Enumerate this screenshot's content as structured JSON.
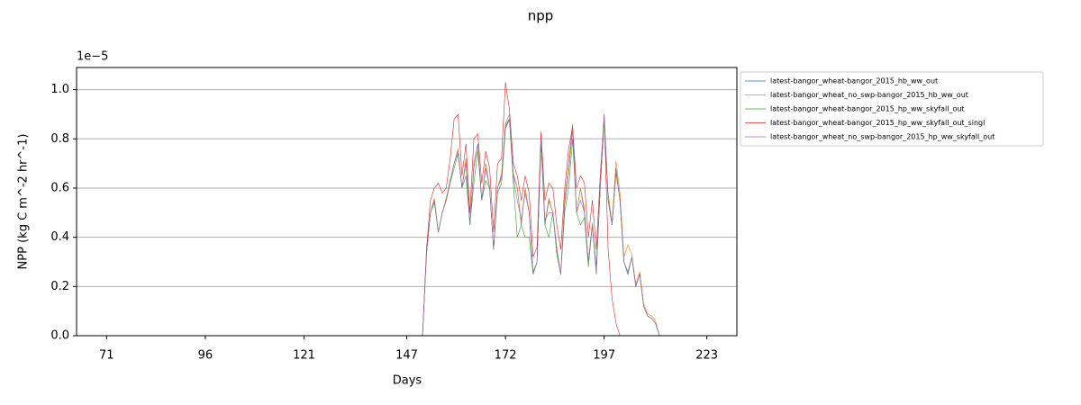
{
  "chart_data": {
    "type": "line",
    "title": "npp",
    "x_label": "Days",
    "y_label": "NPP (kg C m^-2 hr^-1)",
    "y_offset_label": "1e−5",
    "x": [
      151,
      152,
      153,
      154,
      155,
      156,
      157,
      158,
      159,
      160,
      161,
      162,
      163,
      164,
      165,
      166,
      167,
      168,
      169,
      170,
      171,
      172,
      173,
      174,
      175,
      176,
      177,
      178,
      179,
      180,
      181,
      182,
      183,
      184,
      185,
      186,
      187,
      188,
      189,
      190,
      191,
      192,
      193,
      194,
      195,
      196,
      197,
      198,
      199,
      200,
      201,
      202,
      203,
      204,
      205,
      206,
      207,
      208,
      209,
      210,
      211
    ],
    "series": [
      {
        "name": "latest-bangor_wheat-bangor_2015_hb_ww_out",
        "color": "#1f77b4",
        "values": [
          0,
          0.33,
          0.5,
          0.55,
          0.42,
          0.5,
          0.55,
          0.63,
          0.7,
          0.75,
          0.6,
          0.72,
          0.45,
          0.7,
          0.78,
          0.55,
          0.7,
          0.6,
          0.35,
          0.6,
          0.65,
          0.85,
          0.88,
          0.65,
          0.6,
          0.45,
          0.6,
          0.5,
          0.25,
          0.3,
          0.8,
          0.45,
          0.55,
          0.5,
          0.35,
          0.25,
          0.55,
          0.7,
          0.85,
          0.5,
          0.6,
          0.5,
          0.3,
          0.45,
          0.25,
          0.6,
          0.88,
          0.55,
          0.45,
          0.68,
          0.55,
          0.3,
          0.25,
          0.32,
          0.2,
          0.25,
          0.12,
          0.08,
          0.07,
          0.05,
          0
        ]
      },
      {
        "name": "latest-bangor_wheat_no_swp-bangor_2015_hb_ww_out",
        "color": "#ff7f0e",
        "values": [
          0,
          0.33,
          0.5,
          0.56,
          0.42,
          0.5,
          0.56,
          0.63,
          0.7,
          0.76,
          0.6,
          0.72,
          0.45,
          0.7,
          0.78,
          0.55,
          0.7,
          0.6,
          0.35,
          0.6,
          0.66,
          0.86,
          0.88,
          0.66,
          0.6,
          0.46,
          0.6,
          0.5,
          0.26,
          0.3,
          0.8,
          0.46,
          0.56,
          0.5,
          0.36,
          0.25,
          0.56,
          0.7,
          0.86,
          0.5,
          0.6,
          0.52,
          0.3,
          0.46,
          0.26,
          0.6,
          0.88,
          0.58,
          0.46,
          0.71,
          0.58,
          0.32,
          0.37,
          0.33,
          0.21,
          0.26,
          0.13,
          0.09,
          0.08,
          0.06,
          0
        ]
      },
      {
        "name": "latest-bangor_wheat-bangor_2015_hp_ww_skyfall_out",
        "color": "#2ca02c",
        "values": [
          0,
          0.33,
          0.5,
          0.54,
          0.42,
          0.5,
          0.55,
          0.62,
          0.68,
          0.74,
          0.6,
          0.65,
          0.45,
          0.62,
          0.75,
          0.55,
          0.63,
          0.6,
          0.35,
          0.58,
          0.62,
          0.84,
          0.88,
          0.62,
          0.4,
          0.45,
          0.4,
          0.4,
          0.25,
          0.3,
          0.78,
          0.45,
          0.4,
          0.5,
          0.33,
          0.25,
          0.5,
          0.6,
          0.8,
          0.5,
          0.45,
          0.48,
          0.28,
          0.45,
          0.28,
          0.6,
          0.88,
          0.55,
          0.45,
          0.66,
          0.55,
          0.3,
          0.25,
          0.32,
          0.2,
          0.25,
          0.12,
          0.08,
          0.07,
          0.05,
          0
        ]
      },
      {
        "name": "latest-bangor_wheat-bangor_2015_hp_ww_skyfall_out_singl",
        "color": "#d62728",
        "values": [
          0,
          0.35,
          0.55,
          0.6,
          0.62,
          0.58,
          0.6,
          0.72,
          0.88,
          0.9,
          0.65,
          0.78,
          0.5,
          0.8,
          0.82,
          0.62,
          0.75,
          0.68,
          0.42,
          0.7,
          0.72,
          1.03,
          0.92,
          0.7,
          0.65,
          0.55,
          0.65,
          0.58,
          0.32,
          0.36,
          0.83,
          0.55,
          0.62,
          0.6,
          0.45,
          0.35,
          0.6,
          0.76,
          0.85,
          0.6,
          0.65,
          0.62,
          0.4,
          0.55,
          0.35,
          0.65,
          0.9,
          0.35,
          0.15,
          0.05,
          0,
          0,
          0,
          0,
          0,
          0,
          0,
          0,
          0,
          0,
          0
        ]
      },
      {
        "name": "latest-bangor_wheat_no_swp-bangor_2015_hp_ww_skyfall_out",
        "color": "#9467bd",
        "values": [
          0,
          0.33,
          0.5,
          0.55,
          0.42,
          0.5,
          0.55,
          0.63,
          0.7,
          0.75,
          0.6,
          0.7,
          0.45,
          0.68,
          0.78,
          0.55,
          0.68,
          0.6,
          0.35,
          0.6,
          0.64,
          0.86,
          0.9,
          0.64,
          0.55,
          0.47,
          0.58,
          0.5,
          0.25,
          0.3,
          0.8,
          0.47,
          0.5,
          0.5,
          0.35,
          0.25,
          0.53,
          0.66,
          0.84,
          0.5,
          0.55,
          0.5,
          0.3,
          0.45,
          0.26,
          0.6,
          0.9,
          0.56,
          0.45,
          0.67,
          0.55,
          0.3,
          0.26,
          0.32,
          0.2,
          0.25,
          0.12,
          0.08,
          0.07,
          0.05,
          0
        ]
      }
    ],
    "xlim": [
      63.4,
      230.6
    ],
    "ylim": [
      0,
      1.09
    ],
    "xticks": [
      71,
      96,
      121,
      147,
      172,
      197,
      223
    ],
    "yticks": [
      {
        "value": 0,
        "label": "0.0"
      },
      0.2,
      0.4,
      0.6,
      0.8,
      {
        "value": 1,
        "label": "1.0"
      }
    ],
    "grid": true,
    "legend": "outside-right"
  }
}
